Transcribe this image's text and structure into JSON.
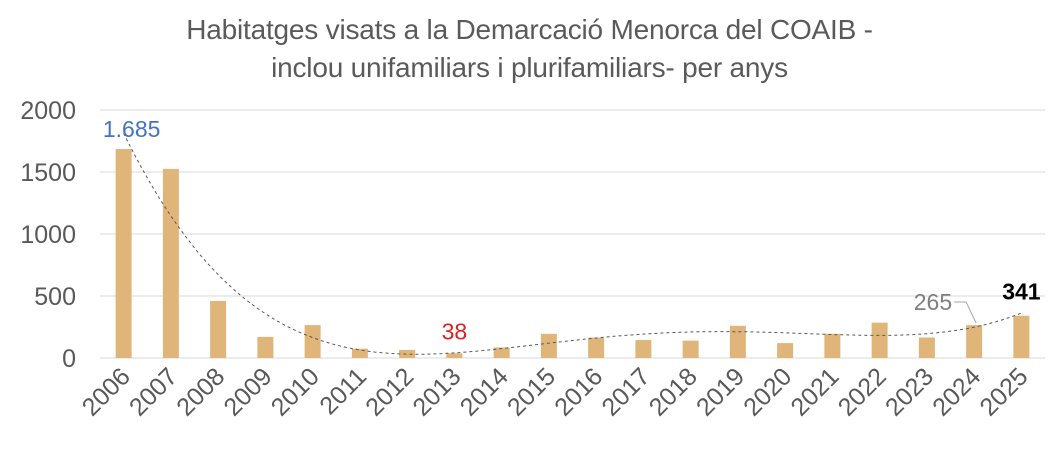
{
  "chart_data": {
    "type": "bar",
    "title_line1": "Habitatges visats a la Demarcació Menorca del COAIB -",
    "title_line2": "inclou unifamiliars i plurifamiliars- per anys",
    "categories": [
      "2006",
      "2007",
      "2008",
      "2009",
      "2010",
      "2011",
      "2012",
      "2013",
      "2014",
      "2015",
      "2016",
      "2017",
      "2018",
      "2019",
      "2020",
      "2021",
      "2022",
      "2023",
      "2024",
      "2025"
    ],
    "values": [
      1685,
      1525,
      460,
      170,
      265,
      75,
      65,
      38,
      85,
      195,
      165,
      145,
      140,
      260,
      120,
      195,
      285,
      165,
      265,
      341
    ],
    "ylim": [
      0,
      2000
    ],
    "yticks": [
      "0",
      "500",
      "1000",
      "1500",
      "2000"
    ],
    "ytick_values": [
      0,
      500,
      1000,
      1500,
      2000
    ],
    "grid": true,
    "trendline": "polynomial",
    "data_labels": [
      {
        "index": 0,
        "text": "1.685",
        "color": "#4472c4"
      },
      {
        "index": 7,
        "text": "38",
        "color": "#e02020"
      },
      {
        "index": 18,
        "text": "265",
        "color": "#7f7f7f"
      },
      {
        "index": 19,
        "text": "341",
        "color": "#000000"
      }
    ],
    "colors": {
      "bar": "#dfb579",
      "grid": "#d9d9d9",
      "axis_text": "#595959",
      "trend": "#595959"
    }
  }
}
